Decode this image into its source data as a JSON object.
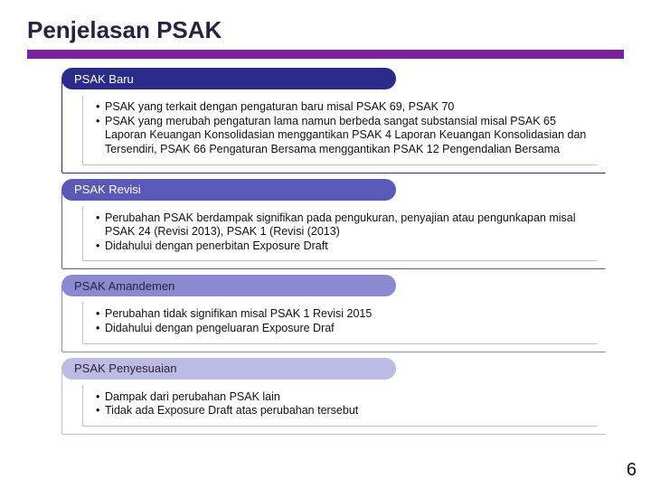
{
  "title": "Penjelasan PSAK",
  "divider_color": "#7c1fa0",
  "page_number": "6",
  "sections": [
    {
      "header": "PSAK Baru",
      "header_bg": "#2a2b8a",
      "border_color": "#2a2b8a",
      "bullets": [
        "PSAK yang terkait dengan pengaturan baru misal PSAK 69, PSAK 70",
        "PSAK yang merubah pengaturan lama namun berbeda sangat substansial misal PSAK 65 Laporan Keuangan Konsolidasian menggantikan PSAK 4 Laporan Keuangan Konsolidasian dan Tersendiri, PSAK 66 Pengaturan Bersama menggantikan PSAK 12 Pengendalian Bersama"
      ]
    },
    {
      "header": "PSAK Revisi",
      "header_bg": "#5a59b8",
      "border_color": "#5a59b8",
      "bullets": [
        "Perubahan PSAK berdampak signifikan pada pengukuran, penyajian atau pengunkapan misal PSAK 24 (Revisi 2013), PSAK 1 (Revisi (2013)",
        "Didahului dengan penerbitan Exposure Draft"
      ]
    },
    {
      "header": "PSAK Amandemen",
      "header_bg": "#8b89cf",
      "border_color": "#8b89cf",
      "bullets": [
        "Perubahan tidak signifikan misal PSAK 1 Revisi 2015",
        "Didahului dengan pengeluaran Exposure Draf"
      ]
    },
    {
      "header": "PSAK Penyesuaian",
      "header_bg": "#bcbbe3",
      "border_color": "#bcbbe3",
      "bullets": [
        "Dampak dari perubahan PSAK lain",
        "Tidak ada Exposure Draft atas perubahan tersebut"
      ]
    }
  ]
}
